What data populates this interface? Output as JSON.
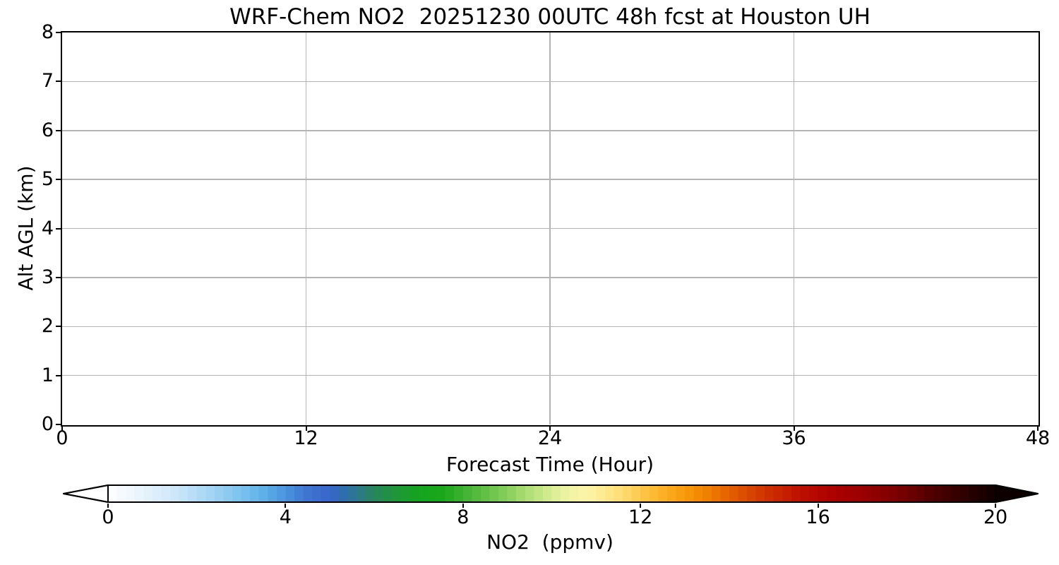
{
  "chart_data": {
    "type": "heatmap",
    "title": "WRF-Chem NO2  20251230 00UTC 48h fcst at Houston UH",
    "xlabel": "Forecast Time (Hour)",
    "ylabel": "Alt AGL (km)",
    "xlim": [
      0,
      48
    ],
    "ylim": [
      0,
      8
    ],
    "xticks": [
      0,
      12,
      24,
      36,
      48
    ],
    "yticks": [
      0,
      1,
      2,
      3,
      4,
      5,
      6,
      7,
      8
    ],
    "grid": true,
    "grid_color": "#b4b4b4",
    "plot_background": "#ffffff",
    "values": [],
    "field_note": "plot field is empty/white; no NO2 values above colormap minimum are drawn",
    "colorbar": {
      "label": "NO2  (ppmv)",
      "range": [
        0,
        20
      ],
      "ticks": [
        0,
        4,
        8,
        12,
        16,
        20
      ],
      "extend": "both",
      "levels_step": 0.2,
      "min_arrow_color": "#ffffff",
      "max_arrow_color": "#0f0000",
      "stops": [
        {
          "v": 0.0,
          "c": "#ffffff"
        },
        {
          "v": 0.5,
          "c": "#f0f7fd"
        },
        {
          "v": 1.0,
          "c": "#e0effb"
        },
        {
          "v": 1.5,
          "c": "#cde7f9"
        },
        {
          "v": 2.0,
          "c": "#b5dcf6"
        },
        {
          "v": 2.5,
          "c": "#99d0f2"
        },
        {
          "v": 3.0,
          "c": "#7ac2ee"
        },
        {
          "v": 3.5,
          "c": "#5fb0e8"
        },
        {
          "v": 4.0,
          "c": "#4a93dd"
        },
        {
          "v": 4.5,
          "c": "#3f74d0"
        },
        {
          "v": 5.0,
          "c": "#3866cc"
        },
        {
          "v": 5.3,
          "c": "#2f6cb0"
        },
        {
          "v": 5.7,
          "c": "#2c7a82"
        },
        {
          "v": 6.0,
          "c": "#27855c"
        },
        {
          "v": 6.5,
          "c": "#1f9638"
        },
        {
          "v": 7.0,
          "c": "#14a41e"
        },
        {
          "v": 7.6,
          "c": "#1ca81c"
        },
        {
          "v": 8.0,
          "c": "#3fb133"
        },
        {
          "v": 8.5,
          "c": "#63c046"
        },
        {
          "v": 9.0,
          "c": "#87cf5c"
        },
        {
          "v": 9.5,
          "c": "#b2e078"
        },
        {
          "v": 10.0,
          "c": "#d9ec94"
        },
        {
          "v": 10.4,
          "c": "#f1f4a6"
        },
        {
          "v": 10.8,
          "c": "#fdf4a9"
        },
        {
          "v": 11.2,
          "c": "#fee98e"
        },
        {
          "v": 11.6,
          "c": "#fedc72"
        },
        {
          "v": 12.0,
          "c": "#fec84b"
        },
        {
          "v": 12.5,
          "c": "#fdb027"
        },
        {
          "v": 13.0,
          "c": "#f99a0b"
        },
        {
          "v": 13.5,
          "c": "#f08000"
        },
        {
          "v": 14.0,
          "c": "#e56000"
        },
        {
          "v": 14.5,
          "c": "#d74300"
        },
        {
          "v": 15.0,
          "c": "#cb2a00"
        },
        {
          "v": 15.5,
          "c": "#c01400"
        },
        {
          "v": 16.0,
          "c": "#b60600"
        },
        {
          "v": 16.5,
          "c": "#a80000"
        },
        {
          "v": 17.0,
          "c": "#9a0000"
        },
        {
          "v": 17.5,
          "c": "#870000"
        },
        {
          "v": 18.0,
          "c": "#700000"
        },
        {
          "v": 18.5,
          "c": "#550000"
        },
        {
          "v": 19.0,
          "c": "#3c0000"
        },
        {
          "v": 19.5,
          "c": "#240000"
        },
        {
          "v": 20.0,
          "c": "#0f0000"
        }
      ]
    }
  }
}
